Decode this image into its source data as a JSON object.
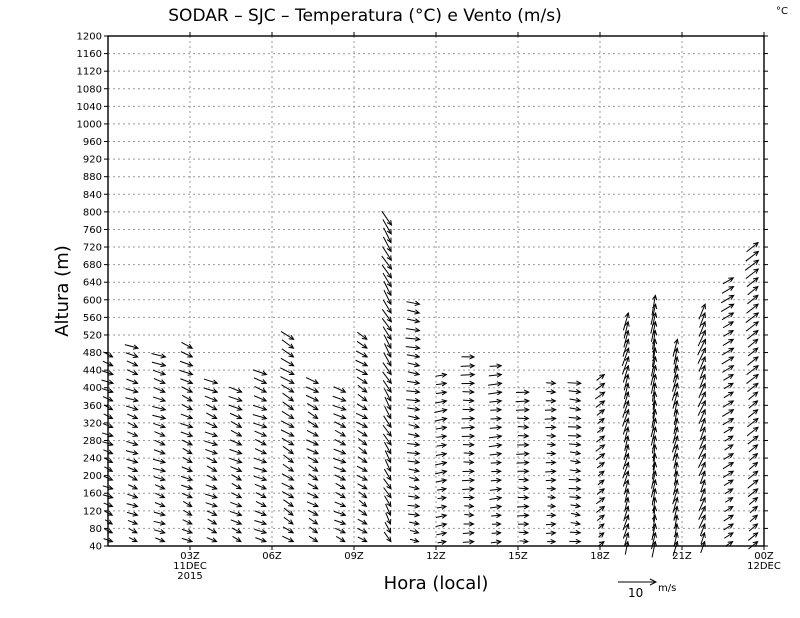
{
  "chart_data": {
    "type": "vector",
    "title": "SODAR – SJC – Temperatura (°C) e Vento (m/s)",
    "corner_label": "°C",
    "xlabel": "Hora (local)",
    "ylabel": "Altura (m)",
    "xlim": [
      0,
      24
    ],
    "ylim": [
      40,
      1200
    ],
    "y_ticks": [
      40,
      80,
      120,
      160,
      200,
      240,
      280,
      320,
      360,
      400,
      440,
      480,
      520,
      560,
      600,
      640,
      680,
      720,
      760,
      800,
      840,
      880,
      920,
      960,
      1000,
      1040,
      1080,
      1120,
      1160,
      1200
    ],
    "x_ticks": [
      {
        "x": 3,
        "label": "03Z",
        "sub1": "11DEC",
        "sub2": "2015"
      },
      {
        "x": 6,
        "label": "06Z",
        "sub1": "",
        "sub2": ""
      },
      {
        "x": 9,
        "label": "09Z",
        "sub1": "",
        "sub2": ""
      },
      {
        "x": 12,
        "label": "12Z",
        "sub1": "",
        "sub2": ""
      },
      {
        "x": 15,
        "label": "15Z",
        "sub1": "",
        "sub2": ""
      },
      {
        "x": 18,
        "label": "18Z",
        "sub1": "",
        "sub2": ""
      },
      {
        "x": 21,
        "label": "21Z",
        "sub1": "",
        "sub2": ""
      },
      {
        "x": 24,
        "label": "00Z",
        "sub1": "12DEC",
        "sub2": ""
      }
    ],
    "grid": true,
    "reference_vector": {
      "speed": 10,
      "label": "10",
      "unit": "m/s"
    },
    "profiles": [
      {
        "hour": 0.1,
        "top": 480,
        "u": 2.5,
        "v": -1.0
      },
      {
        "hour": 1.0,
        "top": 500,
        "u": 2.8,
        "v": -1.0
      },
      {
        "hour": 2.0,
        "top": 480,
        "u": 3.0,
        "v": -1.0
      },
      {
        "hour": 3.0,
        "top": 500,
        "u": 2.8,
        "v": -1.2
      },
      {
        "hour": 3.9,
        "top": 420,
        "u": 3.0,
        "v": -1.2
      },
      {
        "hour": 4.8,
        "top": 400,
        "u": 3.0,
        "v": -1.3
      },
      {
        "hour": 5.7,
        "top": 440,
        "u": 3.2,
        "v": -1.2
      },
      {
        "hour": 6.7,
        "top": 520,
        "u": 3.0,
        "v": -1.8
      },
      {
        "hour": 7.6,
        "top": 420,
        "u": 2.8,
        "v": -1.5
      },
      {
        "hour": 8.6,
        "top": 400,
        "u": 3.0,
        "v": -1.3
      },
      {
        "hour": 9.4,
        "top": 520,
        "u": 2.5,
        "v": -1.5
      },
      {
        "hour": 10.3,
        "top": 780,
        "u": 1.8,
        "v": -3.0
      },
      {
        "hour": 11.3,
        "top": 600,
        "u": 3.0,
        "v": -0.5
      },
      {
        "hour": 12.3,
        "top": 440,
        "u": 2.8,
        "v": 0.5
      },
      {
        "hour": 13.3,
        "top": 480,
        "u": 3.0,
        "v": 0.0
      },
      {
        "hour": 14.3,
        "top": 460,
        "u": 3.0,
        "v": 0.3
      },
      {
        "hour": 15.3,
        "top": 400,
        "u": 3.0,
        "v": 0.0
      },
      {
        "hour": 16.3,
        "top": 420,
        "u": 2.5,
        "v": 0.0
      },
      {
        "hour": 17.2,
        "top": 420,
        "u": 3.0,
        "v": -0.3
      },
      {
        "hour": 18.1,
        "top": 440,
        "u": 2.0,
        "v": 1.5
      },
      {
        "hour": 19.0,
        "top": 580,
        "u": 1.2,
        "v": 4.0
      },
      {
        "hour": 20.0,
        "top": 620,
        "u": 0.8,
        "v": 4.5
      },
      {
        "hour": 20.8,
        "top": 520,
        "u": 1.0,
        "v": 4.0
      },
      {
        "hour": 21.8,
        "top": 600,
        "u": 1.5,
        "v": 3.5
      },
      {
        "hour": 22.8,
        "top": 660,
        "u": 2.5,
        "v": 1.5
      },
      {
        "hour": 23.7,
        "top": 740,
        "u": 2.5,
        "v": 2.0
      }
    ]
  }
}
